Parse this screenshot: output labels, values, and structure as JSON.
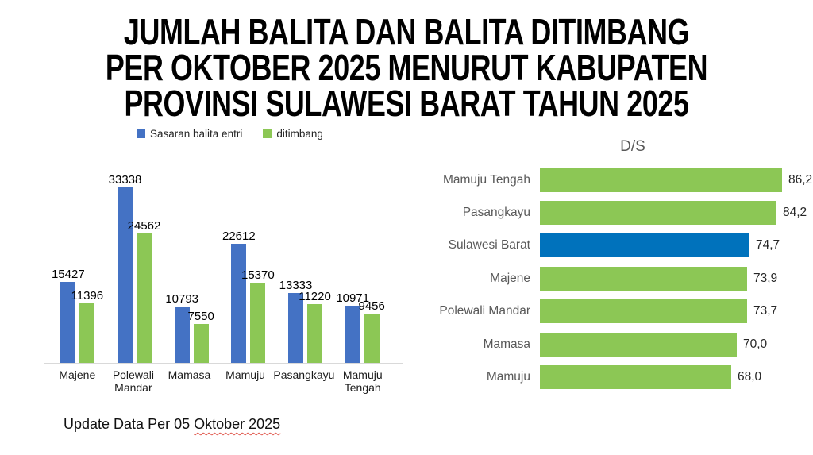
{
  "slide": {
    "title_lines": [
      "JUMLAH BALITA DAN BALITA DITIMBANG",
      "PER OKTOBER 2025 MENURUT KABUPATEN",
      "PROVINSI SULAWESI BARAT TAHUN 2025"
    ],
    "footer": {
      "prefix": "Update Data Per 05 ",
      "misspelled_part": "Oktober 2025"
    }
  },
  "colors": {
    "series_blue": "#4472C4",
    "series_green": "#8CC755",
    "highlight_blue": "#0072BC",
    "gray_text": "#595959",
    "axis_line": "#D9D9D9",
    "squiggle_red": "#E0574C"
  },
  "chart_data": [
    {
      "type": "bar",
      "orientation": "vertical",
      "title": "",
      "legend_position": "top",
      "grid": false,
      "data_labels": true,
      "ylim": [
        0,
        33338
      ],
      "categories": [
        "Majene",
        "Polewali Mandar",
        "Mamasa",
        "Mamuju",
        "Pasangkayu",
        "Mamuju Tengah"
      ],
      "series": [
        {
          "name": "Sasaran balita entri",
          "color": "#4472C4",
          "values": [
            15427,
            33338,
            10793,
            22612,
            13333,
            10971
          ]
        },
        {
          "name": "ditimbang",
          "color": "#8CC755",
          "values": [
            11396,
            24562,
            7550,
            15370,
            11220,
            9456
          ]
        }
      ]
    },
    {
      "type": "bar",
      "orientation": "horizontal",
      "title": "D/S",
      "grid": false,
      "data_labels": true,
      "xlim": [
        0,
        86.2
      ],
      "categories": [
        "Mamuju Tengah",
        "Pasangkayu",
        "Sulawesi Barat",
        "Majene",
        "Polewali Mandar",
        "Mamasa",
        "Mamuju"
      ],
      "values": [
        86.2,
        84.2,
        74.7,
        73.9,
        73.7,
        70.0,
        68.0
      ],
      "value_labels": [
        "86,2",
        "84,2",
        "74,7",
        "73,9",
        "73,7",
        "70,0",
        "68,0"
      ],
      "bar_colors": [
        "green",
        "green",
        "blue",
        "green",
        "green",
        "green",
        "green"
      ]
    }
  ]
}
